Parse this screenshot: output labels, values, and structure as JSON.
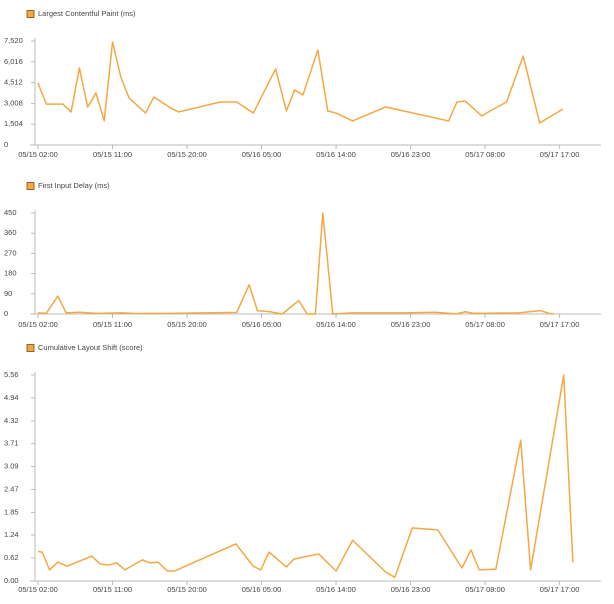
{
  "chart_data": [
    {
      "type": "line",
      "series": [
        {
          "name": "Largest Contentful Paint (ms)",
          "color": "#f5a742",
          "x": [
            0,
            1,
            3,
            4,
            5,
            6,
            7,
            8,
            9,
            10,
            11,
            13,
            14,
            16,
            17,
            22,
            24,
            26,
            28.7,
            30,
            31,
            32,
            33.8,
            35,
            36,
            38,
            42,
            49.6,
            50.6,
            51.6,
            53.6,
            54.6,
            56.6,
            58.6,
            60.6,
            63.4
          ],
          "values": [
            4480,
            2960,
            2960,
            2390,
            5570,
            2750,
            3760,
            1740,
            7450,
            4920,
            3400,
            2310,
            3470,
            2680,
            2390,
            3110,
            3110,
            2310,
            5500,
            2460,
            3980,
            3620,
            6870,
            2460,
            2310,
            1740,
            2750,
            1740,
            3110,
            3180,
            2100,
            2460,
            3110,
            6430,
            1590,
            2600
          ]
        }
      ],
      "xlim": [
        0,
        68
      ],
      "xticks": [
        {
          "value": 0,
          "label": "05/15 02:00"
        },
        {
          "value": 9,
          "label": "05/15 11:00"
        },
        {
          "value": 18,
          "label": "05/15 20:00"
        },
        {
          "value": 27,
          "label": "05/16 05:00"
        },
        {
          "value": 36,
          "label": "05/16 14:00"
        },
        {
          "value": 45,
          "label": "05/16 23:00"
        },
        {
          "value": 54,
          "label": "05/17 08:00"
        },
        {
          "value": 63,
          "label": "05/17 17:00"
        }
      ],
      "ylim": [
        0,
        7520
      ],
      "yticks": [
        0,
        {
          "value": 1504,
          "label": "1,504"
        },
        {
          "value": 3008,
          "label": "3,008"
        },
        {
          "value": 4512,
          "label": "4,512"
        },
        {
          "value": 6016,
          "label": "6,016"
        },
        {
          "value": 7520,
          "label": "7,520"
        }
      ]
    },
    {
      "type": "line",
      "series": [
        {
          "name": "First Input Delay (ms)",
          "color": "#f5a742",
          "x": [
            0,
            1,
            2.4,
            3.4,
            5,
            7,
            10,
            12,
            16,
            20,
            24,
            25.5,
            26.5,
            28,
            29.5,
            31.5,
            32.5,
            33.5,
            34.4,
            35.6,
            38,
            44,
            48,
            50.5,
            51.6,
            52.6,
            58,
            60.7,
            61.7,
            62.3
          ],
          "values": [
            5,
            3,
            80,
            5,
            8,
            3,
            5,
            2,
            3,
            5,
            7,
            130,
            15,
            10,
            0,
            60,
            0,
            0,
            450,
            0,
            5,
            5,
            8,
            0,
            10,
            3,
            5,
            15,
            3,
            0
          ]
        }
      ],
      "xlim": [
        0,
        68
      ],
      "xticks": [
        {
          "value": 0,
          "label": "05/15 02:00"
        },
        {
          "value": 9,
          "label": "05/15 11:00"
        },
        {
          "value": 18,
          "label": "05/15 20:00"
        },
        {
          "value": 27,
          "label": "05/16 05:00"
        },
        {
          "value": 36,
          "label": "05/16 14:00"
        },
        {
          "value": 45,
          "label": "05/16 23:00"
        },
        {
          "value": 54,
          "label": "05/17 08:00"
        },
        {
          "value": 63,
          "label": "05/17 17:00"
        }
      ],
      "ylim": [
        0,
        450
      ],
      "yticks": [
        0,
        90,
        180,
        270,
        360,
        450
      ]
    },
    {
      "type": "line",
      "series": [
        {
          "name": "Cumulative Layout Shift (score)",
          "color": "#f5a742",
          "x": [
            0,
            0.5,
            1.4,
            2.4,
            3.5,
            6.5,
            7.5,
            8.5,
            9.5,
            10.5,
            12.6,
            13.5,
            14.5,
            15.6,
            16.5,
            23.9,
            26,
            26.9,
            27.9,
            30,
            30.9,
            33.9,
            36,
            38,
            42,
            43.1,
            45.2,
            48.3,
            51.2,
            52.3,
            53.3,
            55.3,
            58.3,
            59.5,
            63.5,
            64.6
          ],
          "values": [
            0.8,
            0.78,
            0.3,
            0.51,
            0.4,
            0.67,
            0.46,
            0.43,
            0.49,
            0.3,
            0.57,
            0.49,
            0.51,
            0.27,
            0.27,
            1.0,
            0.4,
            0.3,
            0.78,
            0.38,
            0.59,
            0.73,
            0.27,
            1.1,
            0.24,
            0.1,
            1.43,
            1.38,
            0.35,
            0.84,
            0.3,
            0.32,
            3.8,
            0.3,
            5.56,
            0.51
          ]
        }
      ],
      "xlim": [
        0,
        68
      ],
      "xticks": [
        {
          "value": 0,
          "label": "05/15 02:00"
        },
        {
          "value": 9,
          "label": "05/15 11:00"
        },
        {
          "value": 18,
          "label": "05/15 20:00"
        },
        {
          "value": 27,
          "label": "05/16 05:00"
        },
        {
          "value": 36,
          "label": "05/16 14:00"
        },
        {
          "value": 45,
          "label": "05/16 23:00"
        },
        {
          "value": 54,
          "label": "05/17 08:00"
        },
        {
          "value": 63,
          "label": "05/17 17:00"
        }
      ],
      "ylim": [
        0,
        5.56
      ],
      "yticks": [
        {
          "value": 0,
          "label": "0.00"
        },
        0.62,
        1.24,
        1.85,
        2.47,
        3.09,
        3.71,
        4.32,
        4.94,
        5.56
      ]
    }
  ]
}
